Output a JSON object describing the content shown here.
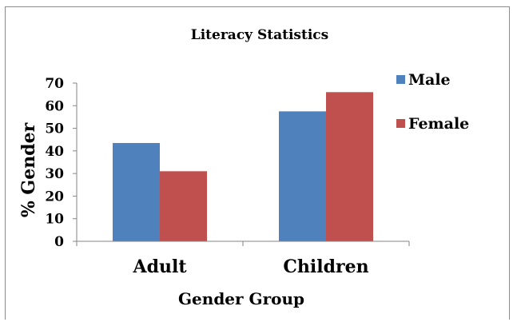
{
  "chart_data": {
    "type": "bar",
    "title": "Literacy Statistics",
    "xlabel": "Gender Group",
    "ylabel": "% Gender",
    "categories": [
      "Adult",
      "Children"
    ],
    "series": [
      {
        "name": "Male",
        "values": [
          43.5,
          57.5
        ],
        "color": "#4F81BD"
      },
      {
        "name": "Female",
        "values": [
          31,
          66
        ],
        "color": "#C0504D"
      }
    ],
    "ylim": [
      0,
      70
    ],
    "yticks": [
      "0",
      "10",
      "20",
      "30",
      "40",
      "50",
      "60",
      "70"
    ],
    "grid": false,
    "legend_position": "right"
  }
}
